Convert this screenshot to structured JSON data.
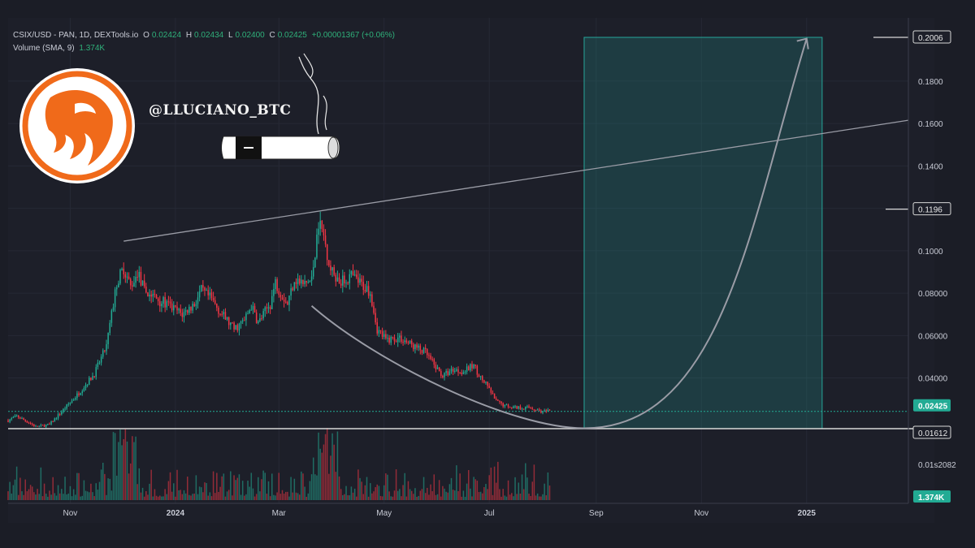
{
  "header": {
    "symbol": "CSIX/USD - PAN, 1D, DEXTools.io",
    "o_label": "O",
    "o_value": "0.02424",
    "h_label": "H",
    "h_value": "0.02434",
    "l_label": "L",
    "l_value": "0.02400",
    "c_label": "C",
    "c_value": "0.02425",
    "change": "+0.00001367 (+0.06%)",
    "volume_label": "Volume (SMA, 9)",
    "volume_value": "1.374K"
  },
  "watermark": {
    "handle": "@LLUCIANO_BTC"
  },
  "colors": {
    "background": "#1b1d26",
    "up": "#22ab94",
    "down": "#f23645",
    "projection_box": "#26a69a",
    "annotation": "#9a9ca6",
    "logo_orange": "#f06a1a"
  },
  "chart_data": {
    "type": "candlestick",
    "x_axis": {
      "ticks": [
        "Nov",
        "2024",
        "Mar",
        "May",
        "Jul",
        "Sep",
        "Nov",
        "2025"
      ],
      "tick_dates": [
        "2023-11-01",
        "2024-01-01",
        "2024-03-01",
        "2024-05-01",
        "2024-07-01",
        "2024-09-01",
        "2024-11-01",
        "2025-01-01"
      ],
      "range": [
        "2023-09-26",
        "2025-03-01"
      ]
    },
    "y_axis": {
      "ticks": [
        0.04,
        0.06,
        0.08,
        0.1,
        0.12,
        0.14,
        0.16,
        0.18
      ],
      "tick_labels": [
        "0.04000",
        "0.06000",
        "0.08000",
        "0.1000",
        "0.1200",
        "0.1400",
        "0.1600",
        "0.1800"
      ],
      "range": [
        0.0161,
        0.2006
      ]
    },
    "price_labels": [
      {
        "text": "0.2006",
        "value": 0.2006,
        "style": "outline"
      },
      {
        "text": "0.1196",
        "value": 0.1196,
        "style": "outline"
      },
      {
        "text": "0.02425",
        "value": 0.02425,
        "style": "filled"
      },
      {
        "text": "0.01612",
        "value": 0.01612,
        "style": "outline"
      }
    ],
    "volume_axis_label": "0.01s2082",
    "volume_last": "1.374K",
    "price_path": [
      [
        "2023-09-26",
        0.02
      ],
      [
        "2023-10-01",
        0.022
      ],
      [
        "2023-10-08",
        0.019
      ],
      [
        "2023-10-12",
        0.017
      ],
      [
        "2023-10-20",
        0.018
      ],
      [
        "2023-10-28",
        0.025
      ],
      [
        "2023-11-05",
        0.032
      ],
      [
        "2023-11-15",
        0.042
      ],
      [
        "2023-11-22",
        0.055
      ],
      [
        "2023-11-28",
        0.085
      ],
      [
        "2023-12-02",
        0.092
      ],
      [
        "2023-12-06",
        0.083
      ],
      [
        "2023-12-10",
        0.09
      ],
      [
        "2023-12-14",
        0.081
      ],
      [
        "2023-12-20",
        0.078
      ],
      [
        "2023-12-28",
        0.074
      ],
      [
        "2024-01-05",
        0.07
      ],
      [
        "2024-01-12",
        0.075
      ],
      [
        "2024-01-16",
        0.081
      ],
      [
        "2024-01-22",
        0.077
      ],
      [
        "2024-01-28",
        0.07
      ],
      [
        "2024-02-04",
        0.063
      ],
      [
        "2024-02-10",
        0.067
      ],
      [
        "2024-02-14",
        0.074
      ],
      [
        "2024-02-18",
        0.066
      ],
      [
        "2024-02-25",
        0.075
      ],
      [
        "2024-02-28",
        0.085
      ],
      [
        "2024-03-03",
        0.079
      ],
      [
        "2024-03-06",
        0.075
      ],
      [
        "2024-03-10",
        0.087
      ],
      [
        "2024-03-15",
        0.084
      ],
      [
        "2024-03-20",
        0.086
      ],
      [
        "2024-03-24",
        0.114
      ],
      [
        "2024-03-27",
        0.107
      ],
      [
        "2024-03-31",
        0.091
      ],
      [
        "2024-04-06",
        0.085
      ],
      [
        "2024-04-12",
        0.088
      ],
      [
        "2024-04-18",
        0.084
      ],
      [
        "2024-04-23",
        0.081
      ],
      [
        "2024-04-27",
        0.063
      ],
      [
        "2024-05-02",
        0.058
      ],
      [
        "2024-05-10",
        0.059
      ],
      [
        "2024-05-18",
        0.055
      ],
      [
        "2024-05-25",
        0.052
      ],
      [
        "2024-05-30",
        0.046
      ],
      [
        "2024-06-04",
        0.041
      ],
      [
        "2024-06-10",
        0.044
      ],
      [
        "2024-06-16",
        0.043
      ],
      [
        "2024-06-22",
        0.046
      ],
      [
        "2024-06-26",
        0.04
      ],
      [
        "2024-06-30",
        0.036
      ],
      [
        "2024-07-05",
        0.029
      ],
      [
        "2024-07-10",
        0.027
      ],
      [
        "2024-07-18",
        0.026
      ],
      [
        "2024-07-25",
        0.026
      ],
      [
        "2024-08-01",
        0.024
      ],
      [
        "2024-08-05",
        0.02425
      ]
    ],
    "annotations": {
      "resistance_line": [
        [
          "2023-12-02",
          0.1045
        ],
        [
          "2025-03-01",
          0.1615
        ]
      ],
      "cup_curve": {
        "from": [
          "2024-03-20",
          0.074
        ],
        "bottom": [
          "2024-08-25",
          0.0163
        ],
        "to": [
          "2025-01-01",
          0.2
        ]
      },
      "projection_box": {
        "from": "2024-08-25",
        "to": "2025-01-10",
        "low": 0.01612,
        "high": 0.2006
      },
      "target_line": 0.2006,
      "prior_high_line": 0.1196,
      "support_line": 0.01612
    }
  }
}
